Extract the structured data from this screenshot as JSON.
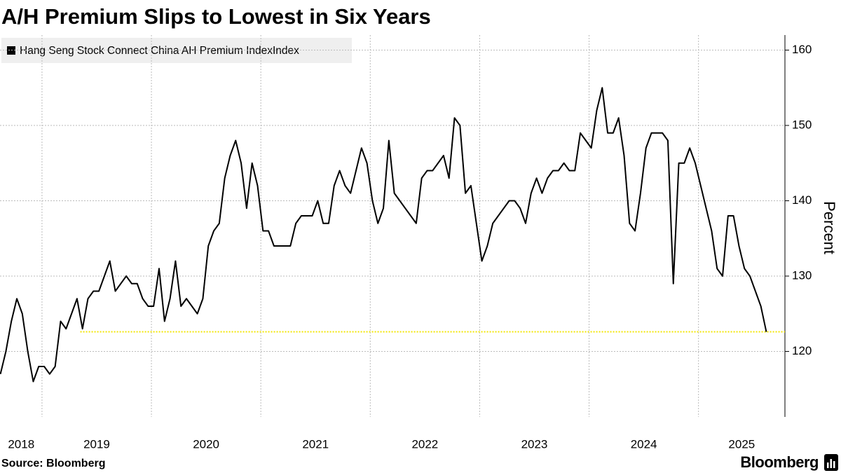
{
  "chart_data": {
    "type": "line",
    "title": "A/H Premium Slips to Lowest in Six Years",
    "y_label": "Percent",
    "source": "Source: Bloomberg",
    "brand": "Bloomberg",
    "xlim": [
      2018.62,
      2025.79
    ],
    "xticks": [
      2019,
      2020,
      2021,
      2022,
      2023,
      2024,
      2025
    ],
    "x_labels": [
      "2018",
      "2019",
      "2020",
      "2021",
      "2022",
      "2023",
      "2024",
      "2025"
    ],
    "ylim": [
      111.3,
      162
    ],
    "yticks": [
      120,
      130,
      140,
      150,
      160
    ],
    "grid": true,
    "legend": "top-left",
    "reference_line": {
      "value": 122.6,
      "x_start": 2019.35,
      "color": "#f2e600"
    },
    "x": [
      2018.62,
      2018.67,
      2018.72,
      2018.77,
      2018.82,
      2018.87,
      2018.92,
      2018.97,
      2019.02,
      2019.07,
      2019.12,
      2019.17,
      2019.22,
      2019.27,
      2019.32,
      2019.37,
      2019.42,
      2019.47,
      2019.52,
      2019.57,
      2019.62,
      2019.67,
      2019.72,
      2019.77,
      2019.82,
      2019.87,
      2019.92,
      2019.97,
      2020.02,
      2020.07,
      2020.12,
      2020.17,
      2020.22,
      2020.27,
      2020.32,
      2020.37,
      2020.42,
      2020.47,
      2020.52,
      2020.57,
      2020.62,
      2020.67,
      2020.72,
      2020.77,
      2020.82,
      2020.87,
      2020.92,
      2020.97,
      2021.02,
      2021.07,
      2021.12,
      2021.17,
      2021.22,
      2021.27,
      2021.32,
      2021.37,
      2021.42,
      2021.47,
      2021.52,
      2021.57,
      2021.62,
      2021.67,
      2021.72,
      2021.77,
      2021.82,
      2021.87,
      2021.92,
      2021.97,
      2022.02,
      2022.07,
      2022.12,
      2022.17,
      2022.22,
      2022.27,
      2022.32,
      2022.37,
      2022.42,
      2022.47,
      2022.52,
      2022.57,
      2022.62,
      2022.67,
      2022.72,
      2022.77,
      2022.82,
      2022.87,
      2022.92,
      2022.97,
      2023.02,
      2023.07,
      2023.12,
      2023.17,
      2023.22,
      2023.27,
      2023.32,
      2023.37,
      2023.42,
      2023.47,
      2023.52,
      2023.57,
      2023.62,
      2023.67,
      2023.72,
      2023.77,
      2023.82,
      2023.87,
      2023.92,
      2023.97,
      2024.02,
      2024.07,
      2024.12,
      2024.17,
      2024.22,
      2024.27,
      2024.32,
      2024.37,
      2024.42,
      2024.47,
      2024.52,
      2024.57,
      2024.62,
      2024.67,
      2024.72,
      2024.77,
      2024.82,
      2024.87,
      2024.92,
      2024.97,
      2025.02,
      2025.07,
      2025.12,
      2025.17,
      2025.22,
      2025.27,
      2025.32,
      2025.37,
      2025.42,
      2025.47,
      2025.52,
      2025.57,
      2025.62
    ],
    "series": [
      {
        "name": "Hang Seng Stock Connect China AH Premium IndexIndex",
        "color": "#000000",
        "values": [
          117,
          120,
          124,
          127,
          125,
          120,
          116,
          118,
          118,
          117,
          118,
          124,
          123,
          125,
          127,
          123,
          127,
          128,
          128,
          130,
          132,
          128,
          129,
          130,
          129,
          129,
          127,
          126,
          126,
          131,
          124,
          127,
          132,
          126,
          127,
          126,
          125,
          127,
          134,
          136,
          137,
          143,
          146,
          148,
          145,
          139,
          145,
          142,
          136,
          136,
          134,
          134,
          134,
          134,
          137,
          138,
          138,
          138,
          140,
          137,
          137,
          142,
          144,
          142,
          141,
          144,
          147,
          145,
          140,
          137,
          139,
          148,
          141,
          140,
          139,
          138,
          137,
          143,
          144,
          144,
          145,
          146,
          143,
          151,
          150,
          141,
          142,
          137,
          132,
          134,
          137,
          138,
          139,
          140,
          140,
          139,
          137,
          141,
          143,
          141,
          143,
          144,
          144,
          145,
          144,
          144,
          149,
          148,
          147,
          152,
          155,
          149,
          149,
          151,
          146,
          137,
          136,
          141,
          147,
          149,
          149,
          149,
          148,
          129,
          145,
          145,
          147,
          145,
          142,
          139,
          136,
          131,
          130,
          138,
          138,
          134,
          131,
          130,
          128,
          126,
          122.6
        ]
      }
    ]
  }
}
